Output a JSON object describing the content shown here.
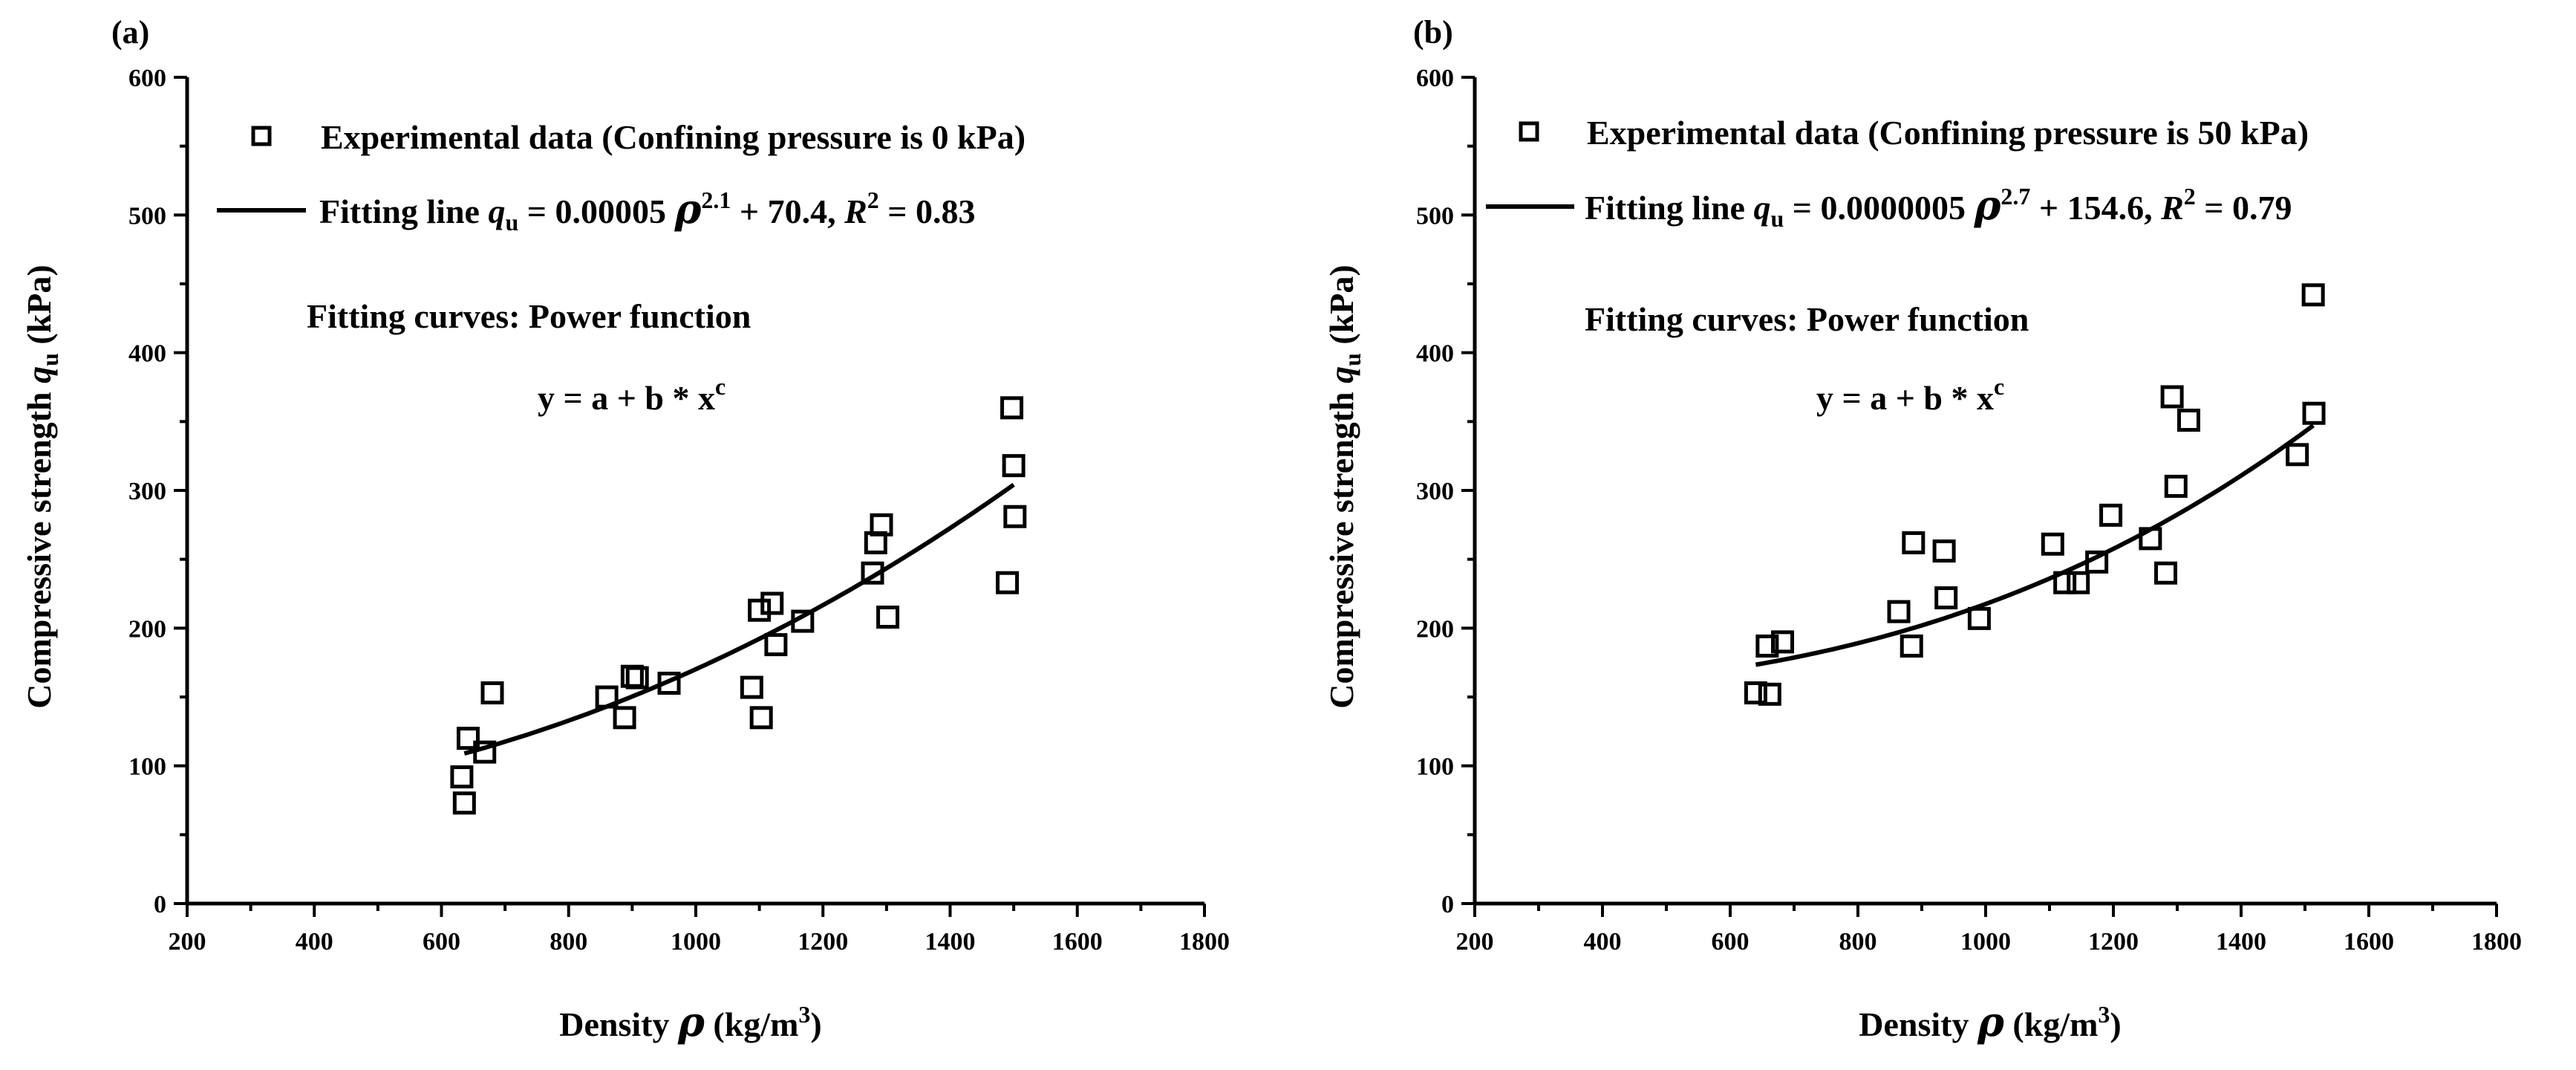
{
  "chart_data": [
    {
      "type": "scatter",
      "panel_label": "(a)",
      "title": "",
      "xlabel": {
        "text": "Density",
        "symbol": "ρ",
        "unit_open": "(kg/m",
        "unit_sup": "3",
        "unit_close": ")"
      },
      "ylabel": {
        "text": "Compressive strength",
        "symbol": "q",
        "symbol_sub": "u",
        "unit": "(kPa)"
      },
      "xlim": [
        200,
        1800
      ],
      "ylim": [
        0,
        600
      ],
      "xticks": [
        200,
        400,
        600,
        800,
        1000,
        1200,
        1400,
        1600,
        1800
      ],
      "yticks": [
        0,
        100,
        200,
        300,
        400,
        500,
        600
      ],
      "legend": {
        "placement": "top-left",
        "scatter_label": "Experimental data (Confining pressure is 0 kPa)",
        "fit_prefix": "Fitting line",
        "fit_var": "q",
        "fit_sub": "u",
        "fit_mid": "= 0.00005",
        "fit_sym": "ρ",
        "fit_exp": "2.1",
        "fit_tail": "+ 70.4,",
        "fit_r": "R",
        "fit_r_exp": "2",
        "fit_r_val": "= 0.83"
      },
      "annotations": {
        "fitting_title": "Fitting curves: Power function",
        "formula_main": "y = a + b * x",
        "formula_exp": "c"
      },
      "series": [
        {
          "name": "Experimental data",
          "kind": "scatter",
          "marker": "open-square",
          "points": [
            [
              632,
              92
            ],
            [
              636,
              73
            ],
            [
              642,
              120
            ],
            [
              668,
              110
            ],
            [
              680,
              153
            ],
            [
              860,
              150
            ],
            [
              888,
              135
            ],
            [
              900,
              165
            ],
            [
              908,
              164
            ],
            [
              958,
              160
            ],
            [
              1088,
              157
            ],
            [
              1100,
              213
            ],
            [
              1103,
              135
            ],
            [
              1120,
              218
            ],
            [
              1126,
              188
            ],
            [
              1168,
              205
            ],
            [
              1278,
              240
            ],
            [
              1283,
              262
            ],
            [
              1292,
              275
            ],
            [
              1302,
              208
            ],
            [
              1490,
              233
            ],
            [
              1497,
              360
            ],
            [
              1500,
              318
            ],
            [
              1502,
              281
            ]
          ]
        },
        {
          "name": "Fitting line",
          "kind": "line",
          "x_start": 636,
          "x_end": 1500,
          "model": {
            "a": 70.4,
            "b": 5e-05,
            "c": 2.1
          }
        }
      ]
    },
    {
      "type": "scatter",
      "panel_label": "(b)",
      "title": "",
      "xlabel": {
        "text": "Density",
        "symbol": "ρ",
        "unit_open": "(kg/m",
        "unit_sup": "3",
        "unit_close": ")"
      },
      "ylabel": {
        "text": "Compressive strength",
        "symbol": "q",
        "symbol_sub": "u",
        "unit": "(kPa)"
      },
      "xlim": [
        200,
        1800
      ],
      "ylim": [
        0,
        600
      ],
      "xticks": [
        200,
        400,
        600,
        800,
        1000,
        1200,
        1400,
        1600,
        1800
      ],
      "yticks": [
        0,
        100,
        200,
        300,
        400,
        500,
        600
      ],
      "legend": {
        "placement": "top-left",
        "scatter_label": "Experimental data (Confining pressure is 50 kPa)",
        "fit_prefix": "Fitting line",
        "fit_var": "q",
        "fit_sub": "u",
        "fit_mid": "= 0.0000005",
        "fit_sym": "ρ",
        "fit_exp": "2.7",
        "fit_tail": "+ 154.6,",
        "fit_r": "R",
        "fit_r_exp": "2",
        "fit_r_val": "= 0.79"
      },
      "annotations": {
        "fitting_title": "Fitting curves: Power function",
        "formula_main": "y = a + b * x",
        "formula_exp": "c"
      },
      "series": [
        {
          "name": "Experimental data",
          "kind": "scatter",
          "marker": "open-square",
          "points": [
            [
              640,
              153
            ],
            [
              658,
              187
            ],
            [
              662,
              152
            ],
            [
              682,
              190
            ],
            [
              864,
              212
            ],
            [
              884,
              187
            ],
            [
              887,
              262
            ],
            [
              935,
              256
            ],
            [
              938,
              222
            ],
            [
              990,
              207
            ],
            [
              1105,
              261
            ],
            [
              1124,
              233
            ],
            [
              1145,
              233
            ],
            [
              1174,
              248
            ],
            [
              1196,
              282
            ],
            [
              1258,
              265
            ],
            [
              1282,
              240
            ],
            [
              1292,
              368
            ],
            [
              1298,
              303
            ],
            [
              1318,
              351
            ],
            [
              1488,
              326
            ],
            [
              1513,
              442
            ],
            [
              1514,
              356
            ]
          ]
        },
        {
          "name": "Fitting line",
          "kind": "line",
          "x_start": 640,
          "x_end": 1513,
          "model": {
            "a": 154.6,
            "b": 5e-07,
            "c": 2.7
          }
        }
      ]
    }
  ]
}
